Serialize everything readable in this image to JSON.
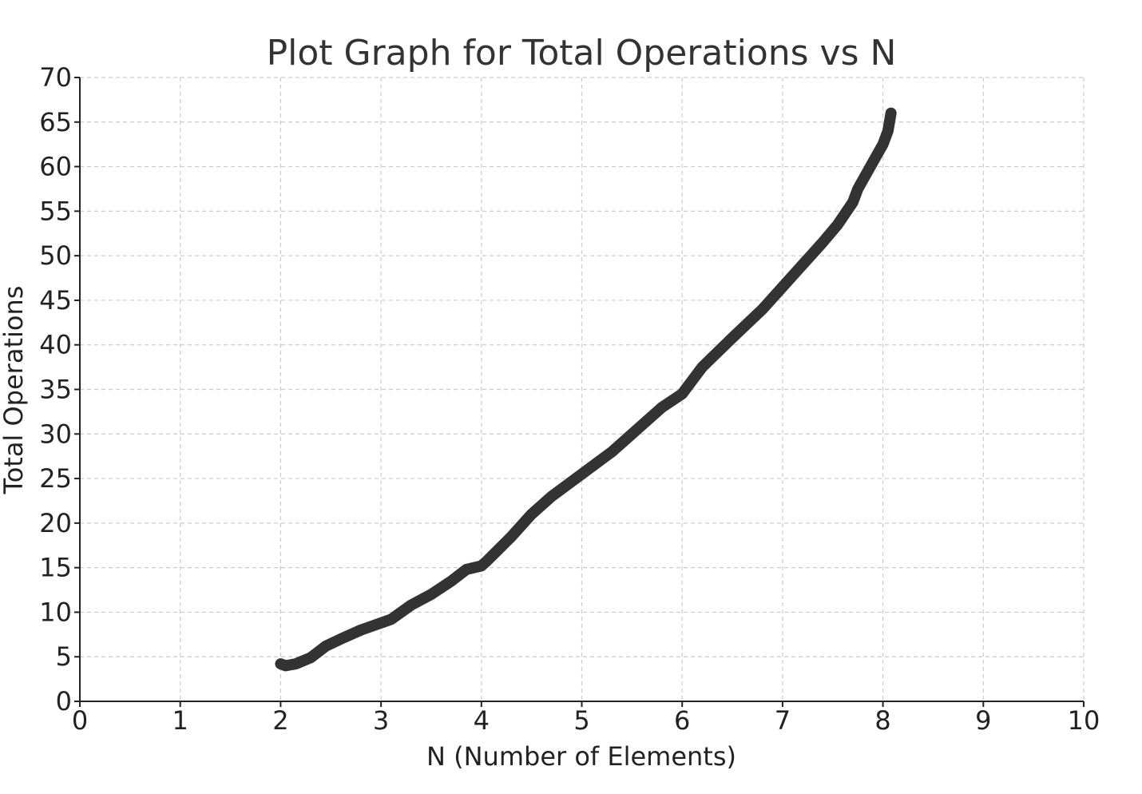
{
  "chart_data": {
    "type": "line",
    "title": "Plot Graph for Total Operations vs N",
    "xlabel": "N (Number of Elements)",
    "ylabel": "Total Operations",
    "xlim": [
      0,
      10
    ],
    "ylim": [
      0,
      70
    ],
    "xticks": [
      "0",
      "1",
      "2",
      "3",
      "4",
      "5",
      "6",
      "7",
      "8",
      "9",
      "10"
    ],
    "yticks": [
      "0",
      "5",
      "10",
      "15",
      "20",
      "25",
      "30",
      "35",
      "40",
      "45",
      "50",
      "55",
      "60",
      "65",
      "70"
    ],
    "grid": true,
    "series": [
      {
        "color": "#333333",
        "x": [
          2.0,
          2.05,
          2.15,
          2.3,
          2.45,
          2.6,
          2.8,
          3.1,
          3.3,
          3.5,
          3.7,
          3.85,
          4.0,
          4.05,
          4.3,
          4.5,
          4.7,
          5.0,
          5.3,
          5.6,
          5.8,
          6.0,
          6.2,
          6.5,
          6.8,
          7.0,
          7.2,
          7.4,
          7.55,
          7.7,
          7.75,
          7.9,
          8.0,
          8.05,
          8.08
        ],
        "y": [
          4.2,
          4.0,
          4.2,
          4.9,
          6.2,
          7.0,
          8.0,
          9.2,
          10.8,
          12.0,
          13.5,
          14.8,
          15.2,
          15.7,
          18.5,
          21.0,
          23.0,
          25.5,
          28.0,
          31.0,
          33.0,
          34.5,
          37.5,
          40.8,
          44.0,
          46.5,
          49.0,
          51.5,
          53.5,
          56.0,
          57.5,
          60.5,
          62.5,
          64.0,
          66.0
        ]
      }
    ]
  }
}
